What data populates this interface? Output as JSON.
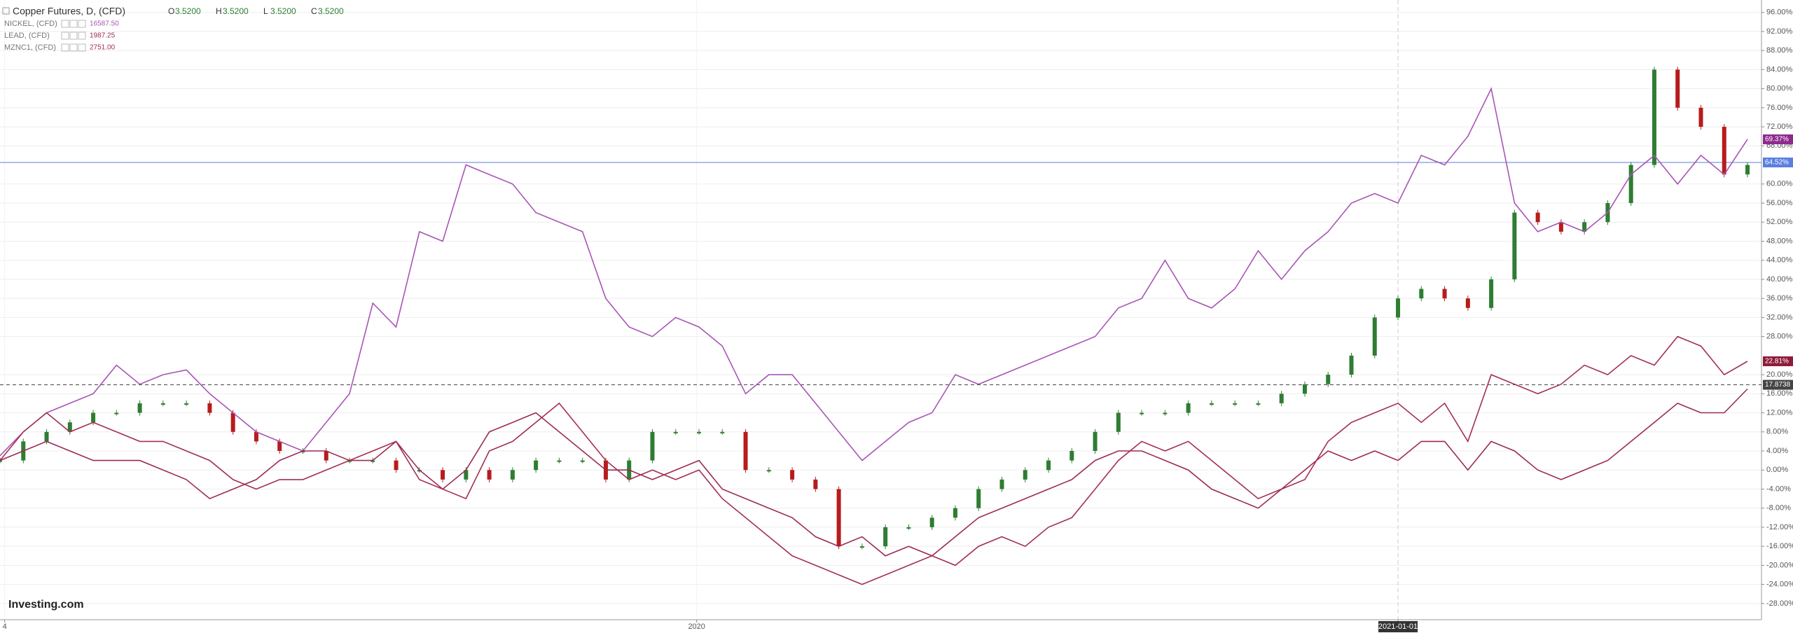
{
  "chart_data": {
    "type": "line",
    "x": [
      0,
      1,
      2,
      3,
      4,
      5,
      6,
      7,
      8,
      9,
      10,
      11,
      12,
      13,
      14,
      15,
      16,
      17,
      18,
      19,
      20,
      21,
      22,
      23,
      24,
      25,
      26,
      27,
      28,
      29,
      30,
      31,
      32,
      33,
      34,
      35,
      36,
      37,
      38,
      39,
      40,
      41,
      42,
      43,
      44,
      45,
      46,
      47,
      48,
      49,
      50,
      51,
      52,
      53,
      54,
      55,
      56,
      57,
      58,
      59,
      60,
      61,
      62,
      63,
      64,
      65,
      66,
      67,
      68,
      69,
      70,
      71,
      72,
      73,
      74,
      75
    ],
    "xlim": [
      0,
      75.6
    ],
    "xticks": [
      {
        "value": 0.2,
        "label": "4"
      },
      {
        "value": 29.9,
        "label": "2020"
      },
      {
        "value": 60,
        "label": "2021-01-01"
      }
    ],
    "ylim": [
      -31.4,
      98.6
    ],
    "yticks": [
      {
        "value": 96,
        "label": "96.00%"
      },
      {
        "value": 92,
        "label": "92.00%"
      },
      {
        "value": 88,
        "label": "88.00%"
      },
      {
        "value": 84,
        "label": "84.00%"
      },
      {
        "value": 80,
        "label": "80.00%"
      },
      {
        "value": 76,
        "label": "76.00%"
      },
      {
        "value": 72,
        "label": "72.00%"
      },
      {
        "value": 68,
        "label": "68.00%"
      },
      {
        "value": 60,
        "label": "60.00%"
      },
      {
        "value": 56,
        "label": "56.00%"
      },
      {
        "value": 52,
        "label": "52.00%"
      },
      {
        "value": 48,
        "label": "48.00%"
      },
      {
        "value": 44,
        "label": "44.00%"
      },
      {
        "value": 40,
        "label": "40.00%"
      },
      {
        "value": 36,
        "label": "36.00%"
      },
      {
        "value": 32,
        "label": "32.00%"
      },
      {
        "value": 28,
        "label": "28.00%"
      },
      {
        "value": 20,
        "label": "20.00%"
      },
      {
        "value": 16,
        "label": "16.00%"
      },
      {
        "value": 12,
        "label": "12.00%"
      },
      {
        "value": 8,
        "label": "8.00%"
      },
      {
        "value": 4,
        "label": "4.00%"
      },
      {
        "value": 0,
        "label": "0.00%"
      },
      {
        "value": -4,
        "label": "-4.00%"
      },
      {
        "value": -8,
        "label": "-8.00%"
      },
      {
        "value": -12,
        "label": "-12.00%"
      },
      {
        "value": -16,
        "label": "-16.00%"
      },
      {
        "value": -20,
        "label": "-20.00%"
      },
      {
        "value": -24,
        "label": "-24.00%"
      },
      {
        "value": -28,
        "label": "-28.00%"
      }
    ],
    "grid": true,
    "ohlc": {
      "labels": [
        "O",
        "H",
        "L",
        "C"
      ],
      "values": [
        3.52,
        3.52,
        3.52,
        3.52
      ],
      "value_labels": [
        "3.5200",
        "3.5200",
        "3.5200",
        "3.5200"
      ]
    },
    "series": [
      {
        "name": "Copper Futures, D, (CFD)",
        "style": "candle",
        "color": "#2e7d32",
        "down_color": "#b71c1c",
        "values": [
          2,
          6,
          8,
          10,
          12,
          12,
          14,
          14,
          14,
          12,
          8,
          6,
          4,
          4,
          2,
          2,
          2,
          0,
          0,
          -2,
          0,
          -2,
          0,
          2,
          2,
          2,
          -2,
          2,
          8,
          8,
          8,
          8,
          0,
          0,
          -2,
          -4,
          -16,
          -16,
          -12,
          -12,
          -10,
          -8,
          -4,
          -2,
          0,
          2,
          4,
          8,
          12,
          12,
          12,
          14,
          14,
          14,
          14,
          16,
          18,
          20,
          24,
          32,
          36,
          38,
          36,
          34,
          40,
          54,
          52,
          50,
          52,
          56,
          64,
          84,
          76,
          72,
          62,
          64
        ]
      },
      {
        "name": "NICKEL, (CFD)",
        "color": "#a855b5",
        "last_value": 16587.5,
        "last_value_label": "16587.50",
        "values": [
          3,
          8,
          12,
          14,
          16,
          22,
          18,
          20,
          21,
          16,
          12,
          8,
          6,
          4,
          10,
          16,
          35,
          30,
          50,
          48,
          64,
          62,
          60,
          54,
          52,
          50,
          36,
          30,
          28,
          32,
          30,
          26,
          16,
          20,
          20,
          14,
          8,
          2,
          6,
          10,
          12,
          20,
          18,
          20,
          22,
          24,
          26,
          28,
          34,
          36,
          44,
          36,
          34,
          38,
          46,
          40,
          46,
          50,
          56,
          58,
          56,
          66,
          64,
          70,
          80,
          56,
          50,
          52,
          50,
          54,
          62,
          66,
          60,
          66,
          62,
          69.37
        ]
      },
      {
        "name": "LEAD, (CFD)",
        "color": "#9c2a55",
        "last_value": 1987.25,
        "last_value_label": "1987.25",
        "values": [
          2,
          4,
          6,
          4,
          2,
          2,
          2,
          0,
          -2,
          -6,
          -4,
          -2,
          2,
          4,
          4,
          2,
          2,
          6,
          0,
          -4,
          0,
          8,
          10,
          12,
          8,
          4,
          0,
          0,
          -2,
          0,
          2,
          -4,
          -6,
          -8,
          -10,
          -14,
          -16,
          -14,
          -18,
          -16,
          -18,
          -14,
          -10,
          -8,
          -6,
          -4,
          -2,
          2,
          4,
          4,
          2,
          0,
          -4,
          -6,
          -8,
          -4,
          0,
          4,
          2,
          4,
          2,
          6,
          6,
          0,
          6,
          4,
          0,
          -2,
          0,
          2,
          6,
          10,
          14,
          12,
          12,
          17
        ]
      },
      {
        "name": "MZNC1, (CFD)",
        "color": "#a3304f",
        "last_value": 2751.0,
        "last_value_label": "2751.00",
        "values": [
          2,
          8,
          12,
          8,
          10,
          8,
          6,
          6,
          4,
          2,
          -2,
          -4,
          -2,
          -2,
          0,
          2,
          4,
          6,
          -2,
          -4,
          -6,
          4,
          6,
          10,
          14,
          8,
          2,
          -2,
          0,
          -2,
          0,
          -6,
          -10,
          -14,
          -18,
          -20,
          -22,
          -24,
          -22,
          -20,
          -18,
          -20,
          -16,
          -14,
          -16,
          -12,
          -10,
          -4,
          2,
          6,
          4,
          6,
          2,
          -2,
          -6,
          -4,
          -2,
          6,
          10,
          12,
          14,
          10,
          14,
          6,
          20,
          18,
          16,
          18,
          22,
          20,
          24,
          22,
          28,
          26,
          20,
          22.81
        ]
      }
    ],
    "price_lines": [
      {
        "value": 64.52,
        "value_label": "64.52%",
        "color": "#5b7fe0",
        "dashed": false
      },
      {
        "value": 17.8738,
        "color": "#444444",
        "dashed": true
      }
    ],
    "badges": [
      {
        "value": 69.37,
        "value_label": "69.37%",
        "color": "#8e2a8e"
      },
      {
        "value": 22.81,
        "value_label": "22.81%",
        "color": "#8e1a3a"
      }
    ],
    "watermark": "Investing.com"
  }
}
